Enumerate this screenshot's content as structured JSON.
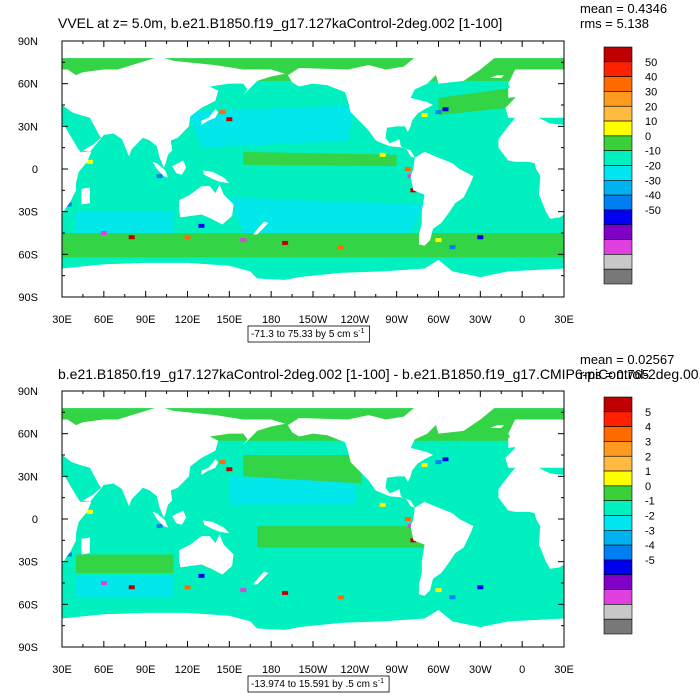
{
  "chart_data": [
    {
      "type": "heatmap",
      "title": "VVEL at z=   5.0m, b.e21.B1850.f19_g17.127kaControl-2deg.002 [1-100]",
      "stats": {
        "mean": "mean = 0.4346",
        "rms": "rms = 5.138"
      },
      "range_label": "-71.3 to 75.33 by 5 cm s",
      "range_sup": "-1",
      "x_ticks": [
        "30E",
        "60E",
        "90E",
        "120E",
        "150E",
        "180",
        "150W",
        "120W",
        "90W",
        "60W",
        "30W",
        "0",
        "30E"
      ],
      "y_ticks": [
        "90N",
        "60N",
        "30N",
        "0",
        "30S",
        "60S",
        "90S"
      ],
      "colorbar_levels": [
        "50",
        "40",
        "30",
        "20",
        "10",
        "0",
        "-10",
        "-20",
        "-30",
        "-40",
        "-50"
      ],
      "colorbar_colors": [
        "#c00000",
        "#ff2000",
        "#ff6a00",
        "#ff9a20",
        "#ffbb40",
        "#ffff00",
        "#3ad03a",
        "#00f0c0",
        "#00e6f0",
        "#00b2f0",
        "#0080f0",
        "#0000f0",
        "#8000c8",
        "#e040e0",
        "#c8c8c8",
        "#787878"
      ]
    },
    {
      "type": "heatmap",
      "title": "b.e21.B1850.f19_g17.127kaControl-2deg.002 [1-100] - b.e21.B1850.f19_g17.CMIP6-piControl-2deg.001",
      "stats": {
        "mean": "mean = 0.02567",
        "rms": "rms = 0.765"
      },
      "range_label": "-13.974 to 15.591 by .5 cm s",
      "range_sup": "-1",
      "x_ticks": [
        "30E",
        "60E",
        "90E",
        "120E",
        "150E",
        "180",
        "150W",
        "120W",
        "90W",
        "60W",
        "30W",
        "0",
        "30E"
      ],
      "y_ticks": [
        "90N",
        "60N",
        "30N",
        "0",
        "30S",
        "60S",
        "90S"
      ],
      "colorbar_levels": [
        "5",
        "4",
        "3",
        "2",
        "1",
        "0",
        "-1",
        "-2",
        "-3",
        "-4",
        "-5"
      ],
      "colorbar_colors": [
        "#c00000",
        "#ff2000",
        "#ff6a00",
        "#ff9a20",
        "#ffbb40",
        "#ffff00",
        "#3ad03a",
        "#00f0c0",
        "#00e6f0",
        "#00b2f0",
        "#0080f0",
        "#0000f0",
        "#8000c8",
        "#e040e0",
        "#c8c8c8",
        "#787878"
      ]
    }
  ],
  "colors": {
    "ocean": "#00f0c0",
    "ocean_light": "#00e6f0",
    "band": "#3ad03a",
    "land": "#ffffff"
  }
}
